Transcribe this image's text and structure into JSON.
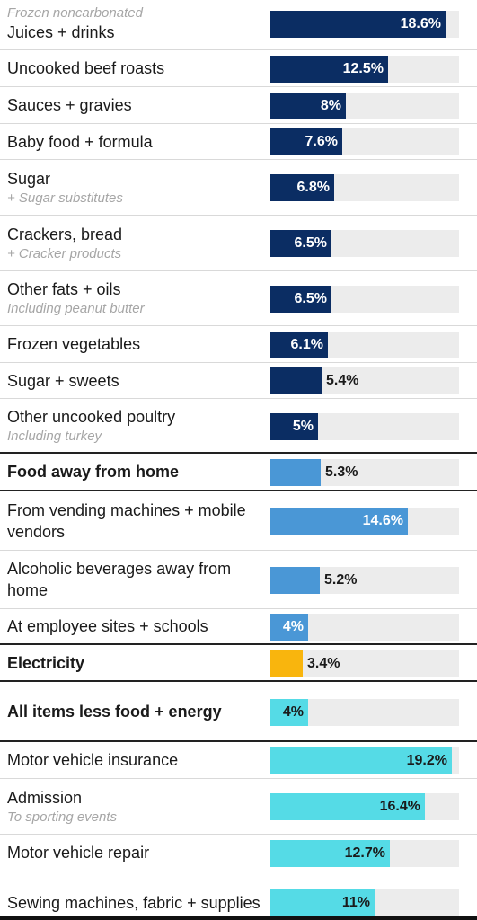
{
  "chart_data": {
    "type": "bar",
    "orientation": "horizontal",
    "value_unit": "%",
    "xlim": [
      0,
      20
    ],
    "rows": [
      {
        "above": "Frozen noncarbonated",
        "label": "Juices + drinks",
        "value": 18.6,
        "display": "18.6%",
        "color": "#0b2d63",
        "value_inside": true,
        "text": "light"
      },
      {
        "label": "Uncooked beef roasts",
        "value": 12.5,
        "display": "12.5%",
        "color": "#0b2d63",
        "value_inside": true,
        "text": "light"
      },
      {
        "label": "Sauces + gravies",
        "value": 8,
        "display": "8%",
        "color": "#0b2d63",
        "value_inside": true,
        "text": "light"
      },
      {
        "label": "Baby food + formula",
        "value": 7.6,
        "display": "7.6%",
        "color": "#0b2d63",
        "value_inside": true,
        "text": "light"
      },
      {
        "label": "Sugar",
        "sub": "+ Sugar substitutes",
        "value": 6.8,
        "display": "6.8%",
        "color": "#0b2d63",
        "value_inside": true,
        "text": "light"
      },
      {
        "label": "Crackers, bread",
        "sub": "+ Cracker products",
        "value": 6.5,
        "display": "6.5%",
        "color": "#0b2d63",
        "value_inside": true,
        "text": "light"
      },
      {
        "label": "Other fats + oils",
        "sub": "Including peanut butter",
        "value": 6.5,
        "display": "6.5%",
        "color": "#0b2d63",
        "value_inside": true,
        "text": "light"
      },
      {
        "label": "Frozen vegetables",
        "value": 6.1,
        "display": "6.1%",
        "color": "#0b2d63",
        "value_inside": true,
        "text": "light"
      },
      {
        "label": "Sugar + sweets",
        "value": 5.4,
        "display": "5.4%",
        "color": "#0b2d63",
        "value_inside": false,
        "text": "dark"
      },
      {
        "label": "Other uncooked poultry",
        "sub": "Including turkey",
        "value": 5,
        "display": "5%",
        "color": "#0b2d63",
        "value_inside": true,
        "text": "light",
        "separator": "dark"
      },
      {
        "label": "Food away from home",
        "bold": true,
        "value": 5.3,
        "display": "5.3%",
        "color": "#4a97d6",
        "value_inside": false,
        "text": "dark",
        "separator": "dark"
      },
      {
        "label": "From vending machines + mobile vendors",
        "value": 14.6,
        "display": "14.6%",
        "color": "#4a97d6",
        "value_inside": true,
        "text": "light"
      },
      {
        "label": "Alcoholic beverages away from home",
        "value": 5.2,
        "display": "5.2%",
        "color": "#4a97d6",
        "value_inside": false,
        "text": "dark"
      },
      {
        "label": "At employee sites + schools",
        "value": 4,
        "display": "4%",
        "color": "#4a97d6",
        "value_inside": true,
        "text": "light",
        "separator": "dark"
      },
      {
        "label": "Electricity",
        "bold": true,
        "value": 3.4,
        "display": "3.4%",
        "color": "#f9b50d",
        "value_inside": false,
        "text": "dark",
        "separator": "dark"
      },
      {
        "label": "All items less food + energy",
        "bold": true,
        "value": 4,
        "display": "4%",
        "color": "#55dbe6",
        "value_inside": true,
        "text": "dark",
        "separator": "dark"
      },
      {
        "label": "Motor vehicle insurance",
        "value": 19.2,
        "display": "19.2%",
        "color": "#55dbe6",
        "value_inside": true,
        "text": "dark"
      },
      {
        "label": "Admission",
        "sub": "To sporting events",
        "value": 16.4,
        "display": "16.4%",
        "color": "#55dbe6",
        "value_inside": true,
        "text": "dark"
      },
      {
        "label": "Motor vehicle repair",
        "value": 12.7,
        "display": "12.7%",
        "color": "#55dbe6",
        "value_inside": true,
        "text": "dark"
      },
      {
        "label": "Sewing machines, fabric + supplies",
        "value": 11,
        "display": "11%",
        "color": "#55dbe6",
        "value_inside": true,
        "text": "dark"
      }
    ]
  }
}
